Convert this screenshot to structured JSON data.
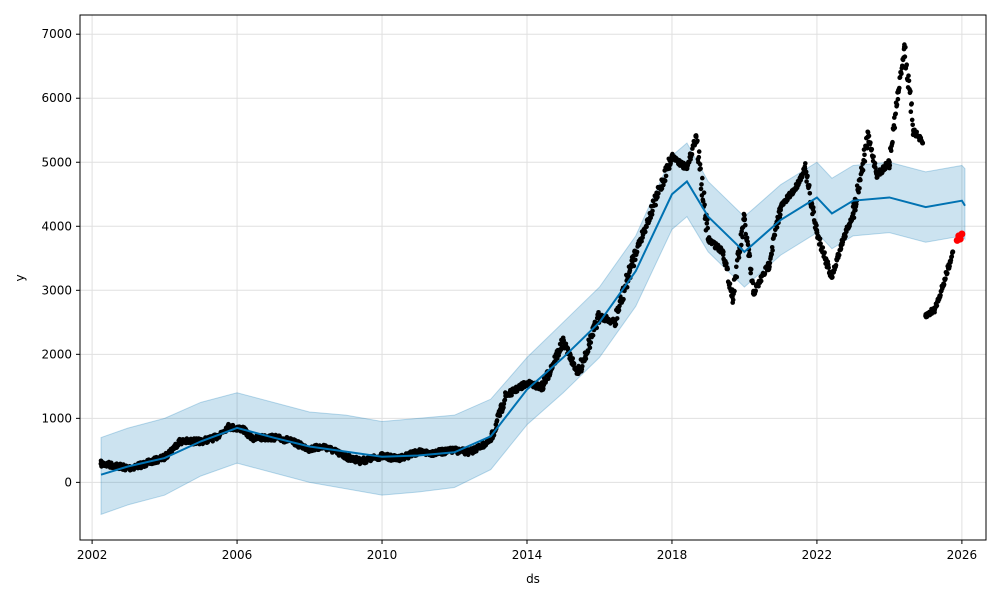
{
  "chart_data": {
    "type": "line",
    "title": "",
    "xlabel": "ds",
    "ylabel": "y",
    "x_axis_type": "date",
    "xlim": [
      "2001-09-01",
      "2026-09-01"
    ],
    "ylim": [
      -900,
      7300
    ],
    "x_ticks": [
      "2002",
      "2006",
      "2010",
      "2014",
      "2018",
      "2022",
      "2026"
    ],
    "y_ticks": [
      "0",
      "1000",
      "2000",
      "3000",
      "4000",
      "5000",
      "6000",
      "7000"
    ],
    "grid": true,
    "legend": "none",
    "colors": {
      "observed": "#000000",
      "forecast_line": "#0072B2",
      "uncertainty_band": "#0072B2",
      "recent_points": "#ff0000",
      "grid": "#e0e0e0"
    },
    "series": [
      {
        "role": "observed",
        "points": [
          [
            "2002-04-01",
            290
          ],
          [
            "2002-09-01",
            260
          ],
          [
            "2003-01-01",
            220
          ],
          [
            "2003-06-01",
            280
          ],
          [
            "2004-01-01",
            390
          ],
          [
            "2004-06-01",
            640
          ],
          [
            "2005-01-01",
            640
          ],
          [
            "2005-06-01",
            700
          ],
          [
            "2005-10-01",
            870
          ],
          [
            "2006-03-01",
            830
          ],
          [
            "2006-06-01",
            690
          ],
          [
            "2007-01-01",
            700
          ],
          [
            "2007-06-01",
            660
          ],
          [
            "2008-01-01",
            520
          ],
          [
            "2008-06-01",
            560
          ],
          [
            "2009-01-01",
            400
          ],
          [
            "2009-06-01",
            330
          ],
          [
            "2010-01-01",
            410
          ],
          [
            "2010-06-01",
            370
          ],
          [
            "2011-01-01",
            470
          ],
          [
            "2011-06-01",
            460
          ],
          [
            "2012-01-01",
            500
          ],
          [
            "2012-06-01",
            470
          ],
          [
            "2013-01-01",
            650
          ],
          [
            "2013-06-01",
            1350
          ],
          [
            "2014-01-01",
            1550
          ],
          [
            "2014-06-01",
            1480
          ],
          [
            "2015-01-01",
            2200
          ],
          [
            "2015-06-01",
            1700
          ],
          [
            "2016-01-01",
            2600
          ],
          [
            "2016-06-01",
            2500
          ],
          [
            "2017-01-01",
            3600
          ],
          [
            "2017-06-01",
            4200
          ],
          [
            "2018-01-01",
            5100
          ],
          [
            "2018-06-01",
            4900
          ],
          [
            "2018-09-01",
            5400
          ],
          [
            "2019-01-01",
            3800
          ],
          [
            "2019-06-01",
            3600
          ],
          [
            "2019-09-01",
            2900
          ],
          [
            "2020-01-01",
            4100
          ],
          [
            "2020-04-01",
            2950
          ],
          [
            "2020-09-01",
            3400
          ],
          [
            "2021-01-01",
            4300
          ],
          [
            "2021-06-01",
            4600
          ],
          [
            "2021-09-01",
            4900
          ],
          [
            "2022-01-01",
            3900
          ],
          [
            "2022-06-01",
            3200
          ],
          [
            "2022-09-01",
            3700
          ],
          [
            "2023-01-01",
            4200
          ],
          [
            "2023-06-01",
            5400
          ],
          [
            "2023-09-01",
            4800
          ],
          [
            "2024-01-01",
            5000
          ],
          [
            "2024-04-01",
            6100
          ],
          [
            "2024-06-01",
            6800
          ],
          [
            "2024-09-01",
            5500
          ],
          [
            "2024-12-01",
            5300
          ],
          [
            "2025-01-01",
            2600
          ],
          [
            "2025-04-01",
            2700
          ],
          [
            "2025-07-01",
            3100
          ],
          [
            "2025-10-01",
            3600
          ]
        ]
      },
      {
        "role": "recent",
        "points": [
          [
            "2025-11-15",
            3780
          ],
          [
            "2025-12-01",
            3850
          ],
          [
            "2025-12-15",
            3800
          ],
          [
            "2026-01-01",
            3880
          ]
        ]
      },
      {
        "role": "forecast",
        "points": [
          [
            "2002-04-01",
            120
          ],
          [
            "2003-01-01",
            250
          ],
          [
            "2004-01-01",
            380
          ],
          [
            "2005-01-01",
            640
          ],
          [
            "2006-01-01",
            850
          ],
          [
            "2007-01-01",
            700
          ],
          [
            "2008-01-01",
            560
          ],
          [
            "2009-01-01",
            480
          ],
          [
            "2010-01-01",
            400
          ],
          [
            "2011-01-01",
            420
          ],
          [
            "2012-01-01",
            470
          ],
          [
            "2013-01-01",
            720
          ],
          [
            "2014-01-01",
            1450
          ],
          [
            "2015-01-01",
            1950
          ],
          [
            "2016-01-01",
            2500
          ],
          [
            "2017-01-01",
            3300
          ],
          [
            "2018-01-01",
            4500
          ],
          [
            "2018-06-01",
            4700
          ],
          [
            "2019-01-01",
            4150
          ],
          [
            "2020-01-01",
            3600
          ],
          [
            "2021-01-01",
            4100
          ],
          [
            "2022-01-01",
            4450
          ],
          [
            "2022-06-01",
            4200
          ],
          [
            "2023-01-01",
            4400
          ],
          [
            "2024-01-01",
            4450
          ],
          [
            "2025-01-01",
            4300
          ],
          [
            "2026-01-01",
            4400
          ],
          [
            "2026-02-01",
            4320
          ]
        ],
        "band": [
          [
            -500,
            700
          ],
          [
            -350,
            850
          ],
          [
            -200,
            1000
          ],
          [
            100,
            1250
          ],
          [
            300,
            1400
          ],
          [
            150,
            1250
          ],
          [
            0,
            1100
          ],
          [
            -100,
            1050
          ],
          [
            -200,
            950
          ],
          [
            -150,
            1000
          ],
          [
            -80,
            1050
          ],
          [
            200,
            1300
          ],
          [
            900,
            1950
          ],
          [
            1400,
            2500
          ],
          [
            1950,
            3050
          ],
          [
            2750,
            3850
          ],
          [
            3950,
            5100
          ],
          [
            4150,
            5300
          ],
          [
            3600,
            4700
          ],
          [
            3050,
            4150
          ],
          [
            3550,
            4650
          ],
          [
            3900,
            5000
          ],
          [
            3650,
            4750
          ],
          [
            3850,
            4950
          ],
          [
            3900,
            5000
          ],
          [
            3750,
            4850
          ],
          [
            3850,
            4950
          ],
          [
            3800,
            4900
          ]
        ]
      }
    ]
  }
}
